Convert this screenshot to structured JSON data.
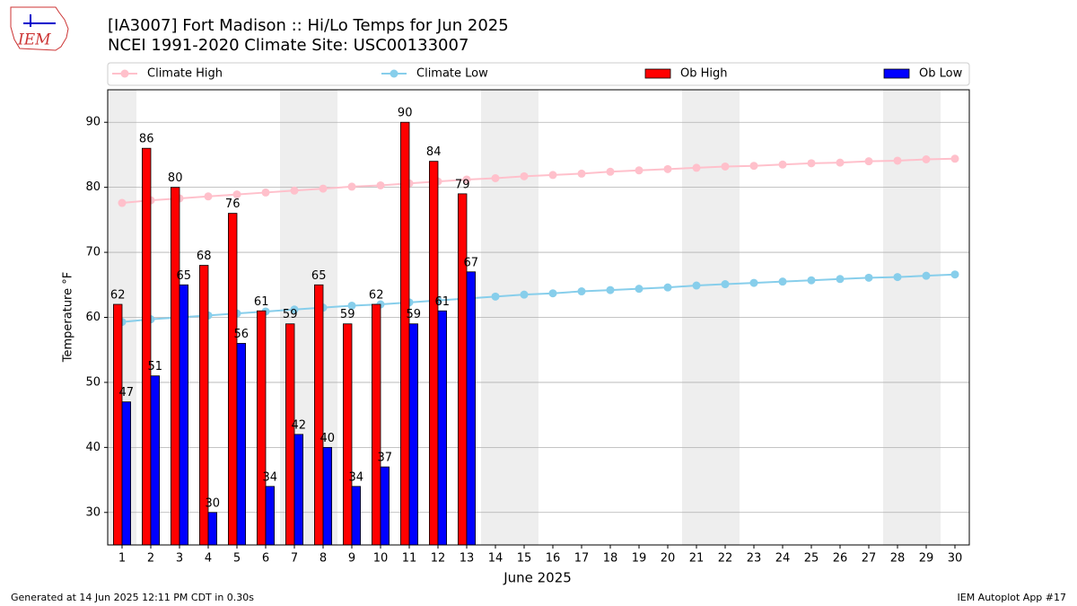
{
  "chart_data": {
    "type": "bar",
    "logo_text": "IEM",
    "title": "[IA3007] Fort Madison :: Hi/Lo Temps for Jun 2025",
    "subtitle": "NCEI 1991-2020 Climate Site: USC00133007",
    "x_label": "June 2025",
    "y_label": "Temperature °F",
    "footer_left": "Generated at 14 Jun 2025 12:11 PM CDT in 0.30s",
    "footer_right": "IEM Autoplot App #17",
    "legend": "top",
    "grid": true,
    "x": [
      1,
      2,
      3,
      4,
      5,
      6,
      7,
      8,
      9,
      10,
      11,
      12,
      13,
      14,
      15,
      16,
      17,
      18,
      19,
      20,
      21,
      22,
      23,
      24,
      25,
      26,
      27,
      28,
      29,
      30
    ],
    "xlim": [
      0.5,
      30.5
    ],
    "xticks": [
      1,
      2,
      3,
      4,
      5,
      6,
      7,
      8,
      9,
      10,
      11,
      12,
      13,
      14,
      15,
      16,
      17,
      18,
      19,
      20,
      21,
      22,
      23,
      24,
      25,
      26,
      27,
      28,
      29,
      30
    ],
    "ylim": [
      25,
      95
    ],
    "yticks": [
      30,
      40,
      50,
      60,
      70,
      80,
      90
    ],
    "weekend_spans": [
      [
        0.5,
        1.5
      ],
      [
        6.5,
        8.5
      ],
      [
        13.5,
        15.5
      ],
      [
        20.5,
        22.5
      ],
      [
        27.5,
        29.5
      ]
    ],
    "series": [
      {
        "name": "Climate High",
        "type": "line",
        "color": "#ffc0cb",
        "values": [
          77.6,
          78.0,
          78.3,
          78.6,
          78.9,
          79.2,
          79.5,
          79.8,
          80.1,
          80.3,
          80.6,
          80.9,
          81.2,
          81.4,
          81.7,
          81.9,
          82.1,
          82.4,
          82.6,
          82.8,
          83.0,
          83.2,
          83.3,
          83.5,
          83.7,
          83.8,
          84.0,
          84.1,
          84.3,
          84.4
        ]
      },
      {
        "name": "Climate Low",
        "type": "line",
        "color": "#87ceeb",
        "values": [
          59.3,
          59.7,
          60.0,
          60.3,
          60.6,
          60.9,
          61.2,
          61.5,
          61.8,
          62.0,
          62.3,
          62.6,
          62.9,
          63.2,
          63.5,
          63.7,
          64.0,
          64.2,
          64.4,
          64.6,
          64.9,
          65.1,
          65.3,
          65.5,
          65.7,
          65.9,
          66.1,
          66.2,
          66.4,
          66.6
        ]
      },
      {
        "name": "Ob High",
        "type": "bar",
        "color": "#ff0000",
        "values": [
          62,
          86,
          80,
          68,
          76,
          61,
          59,
          65,
          59,
          62,
          90,
          84,
          79,
          null,
          null,
          null,
          null,
          null,
          null,
          null,
          null,
          null,
          null,
          null,
          null,
          null,
          null,
          null,
          null,
          null
        ]
      },
      {
        "name": "Ob Low",
        "type": "bar",
        "color": "#0000ff",
        "values": [
          47,
          51,
          65,
          30,
          56,
          34,
          42,
          40,
          34,
          37,
          59,
          61,
          67,
          null,
          null,
          null,
          null,
          null,
          null,
          null,
          null,
          null,
          null,
          null,
          null,
          null,
          null,
          null,
          null,
          null
        ]
      }
    ]
  }
}
